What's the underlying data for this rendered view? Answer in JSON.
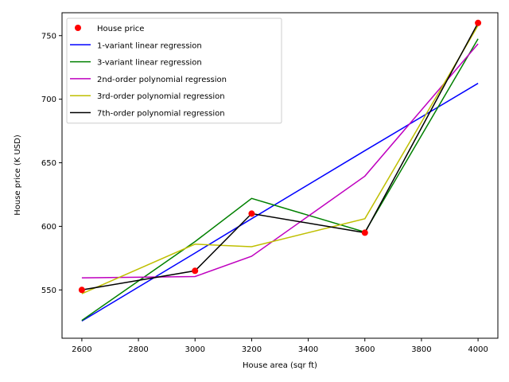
{
  "chart_data": {
    "type": "line",
    "xlabel": "House area (sqr ft)",
    "ylabel": "House price (K USD)",
    "xlim": [
      2530,
      4070
    ],
    "ylim": [
      512,
      768
    ],
    "xticks": [
      2600,
      2800,
      3000,
      3200,
      3400,
      3600,
      3800,
      4000
    ],
    "yticks": [
      550,
      600,
      650,
      700,
      750
    ],
    "grid": false,
    "legend_position": "upper-left",
    "scatter": {
      "name": "House price",
      "color": "#ff0000",
      "x": [
        2600,
        3000,
        3200,
        3600,
        4000
      ],
      "y": [
        550,
        565,
        610,
        595,
        760
      ]
    },
    "series": [
      {
        "name": "1-variant linear regression",
        "color": "#0000ff",
        "x": [
          2600,
          3000,
          3200,
          3600,
          4000
        ],
        "y": [
          525.5,
          579,
          606,
          659.5,
          712.5
        ]
      },
      {
        "name": "3-variant linear regression",
        "color": "#008000",
        "x": [
          2600,
          3000,
          3200,
          3600,
          4000
        ],
        "y": [
          526,
          588,
          622,
          595.5,
          747.5
        ]
      },
      {
        "name": "2nd-order polynomial regression",
        "color": "#bf00bf",
        "x": [
          2600,
          3000,
          3200,
          3600,
          4000
        ],
        "y": [
          559.5,
          560.5,
          576.5,
          639.5,
          743.5
        ]
      },
      {
        "name": "3rd-order polynomial regression",
        "color": "#bfbf00",
        "x": [
          2600,
          3000,
          3200,
          3600,
          4000
        ],
        "y": [
          547,
          586,
          584,
          606,
          758
        ]
      },
      {
        "name": "7th-order polynomial regression",
        "color": "#000000",
        "x": [
          2600,
          3000,
          3200,
          3600,
          4000
        ],
        "y": [
          550,
          565,
          610,
          595,
          760
        ]
      }
    ]
  }
}
